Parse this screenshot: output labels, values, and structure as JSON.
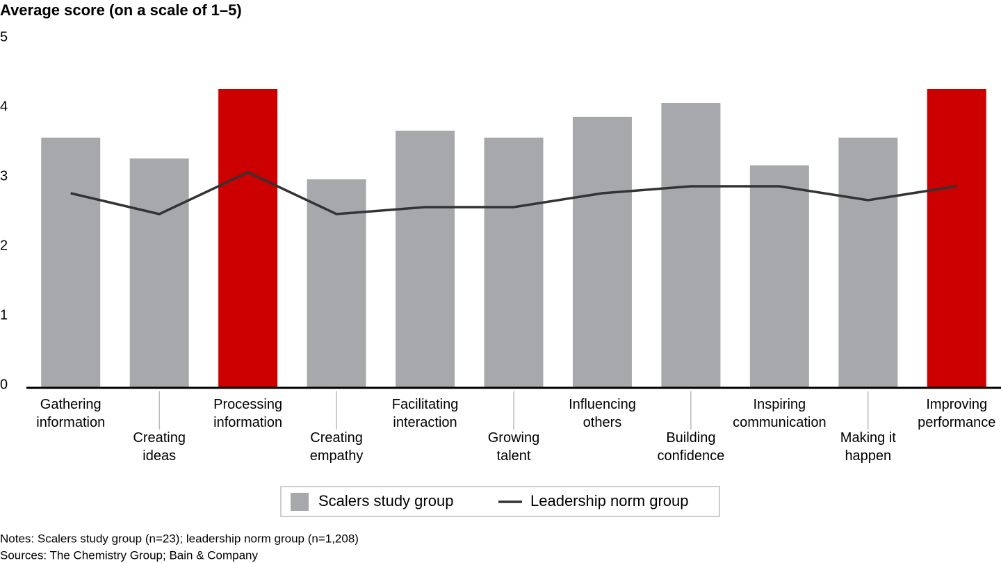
{
  "chart_data": {
    "type": "bar",
    "ylabel": "Average score (on a scale of 1–5)",
    "categories": [
      "Gathering\ninformation",
      "Creating\nideas",
      "Processing\ninformation",
      "Creating\nempathy",
      "Facilitating\ninteraction",
      "Growing\ntalent",
      "Influencing\nothers",
      "Building\nconfidence",
      "Inspiring\ncommunication",
      "Making it\nhappen",
      "Improving\nperformance"
    ],
    "series": [
      {
        "name": "Scalers study group",
        "type": "bar",
        "color": "#a7a8ab",
        "colors": [
          "#a7a8ab",
          "#a7a8ab",
          "#cc0000",
          "#a7a8ab",
          "#a7a8ab",
          "#a7a8ab",
          "#a7a8ab",
          "#a7a8ab",
          "#a7a8ab",
          "#a7a8ab",
          "#cc0000"
        ],
        "values": [
          3.6,
          3.3,
          4.3,
          3.0,
          3.7,
          3.6,
          3.9,
          4.1,
          3.2,
          3.6,
          4.3
        ]
      },
      {
        "name": "Leadership norm group",
        "type": "line",
        "color": "#333333",
        "values": [
          2.8,
          2.5,
          3.1,
          2.5,
          2.6,
          2.6,
          2.8,
          2.9,
          2.9,
          2.7,
          2.9
        ]
      }
    ],
    "ylim": [
      0,
      5
    ],
    "yticks": [
      0,
      1,
      2,
      3,
      4,
      5
    ],
    "grid": false,
    "notes": "Notes: Scalers study group (n=23); leadership norm group (n=1,208)",
    "sources": "Sources: The Chemistry Group; Bain & Company"
  }
}
